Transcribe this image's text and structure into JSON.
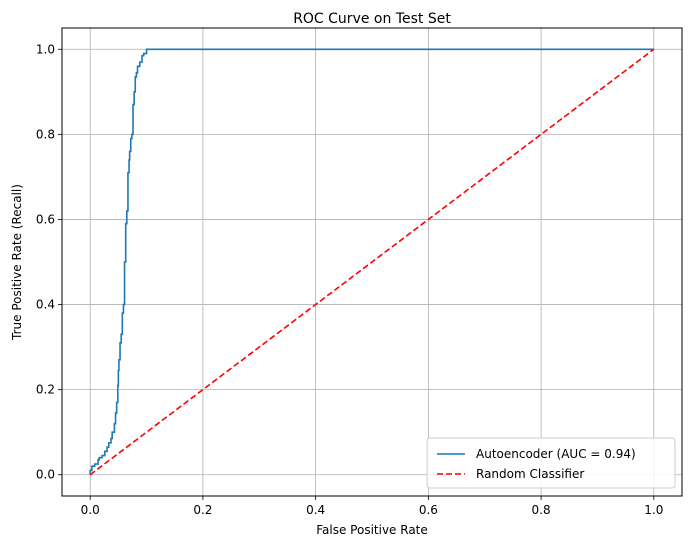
{
  "chart_data": {
    "type": "line",
    "title": "ROC Curve on Test Set",
    "xlabel": "False Positive Rate",
    "ylabel": "True Positive Rate (Recall)",
    "xlim": [
      -0.05,
      1.05
    ],
    "ylim": [
      -0.05,
      1.05
    ],
    "xticks": [
      0.0,
      0.2,
      0.4,
      0.6,
      0.8,
      1.0
    ],
    "yticks": [
      0.0,
      0.2,
      0.4,
      0.6,
      0.8,
      1.0
    ],
    "xtick_labels": [
      "0.0",
      "0.2",
      "0.4",
      "0.6",
      "0.8",
      "1.0"
    ],
    "ytick_labels": [
      "0.0",
      "0.2",
      "0.4",
      "0.6",
      "0.8",
      "1.0"
    ],
    "grid": true,
    "legend_position": "lower-right",
    "series": [
      {
        "name": "Autoencoder (AUC = 0.94)",
        "color": "#1f77b4",
        "style": "step",
        "x": [
          0.0,
          0.0,
          0.003,
          0.003,
          0.008,
          0.008,
          0.014,
          0.014,
          0.016,
          0.016,
          0.021,
          0.021,
          0.026,
          0.026,
          0.03,
          0.03,
          0.033,
          0.033,
          0.037,
          0.037,
          0.039,
          0.039,
          0.043,
          0.043,
          0.045,
          0.045,
          0.047,
          0.047,
          0.049,
          0.049,
          0.05,
          0.05,
          0.051,
          0.051,
          0.053,
          0.053,
          0.055,
          0.055,
          0.057,
          0.057,
          0.059,
          0.059,
          0.061,
          0.061,
          0.063,
          0.063,
          0.065,
          0.065,
          0.067,
          0.067,
          0.069,
          0.069,
          0.07,
          0.07,
          0.072,
          0.072,
          0.074,
          0.074,
          0.076,
          0.076,
          0.078,
          0.078,
          0.08,
          0.08,
          0.082,
          0.082,
          0.084,
          0.084,
          0.088,
          0.088,
          0.092,
          0.092,
          0.095,
          0.095,
          0.1,
          0.1,
          0.105,
          0.105,
          1.0
        ],
        "y": [
          0.0,
          0.01,
          0.01,
          0.02,
          0.02,
          0.025,
          0.025,
          0.035,
          0.035,
          0.04,
          0.04,
          0.045,
          0.045,
          0.055,
          0.055,
          0.065,
          0.065,
          0.075,
          0.075,
          0.085,
          0.085,
          0.1,
          0.1,
          0.12,
          0.12,
          0.145,
          0.145,
          0.17,
          0.17,
          0.21,
          0.21,
          0.245,
          0.245,
          0.27,
          0.27,
          0.31,
          0.31,
          0.33,
          0.33,
          0.38,
          0.38,
          0.4,
          0.4,
          0.5,
          0.5,
          0.59,
          0.59,
          0.62,
          0.62,
          0.71,
          0.71,
          0.74,
          0.74,
          0.76,
          0.76,
          0.79,
          0.79,
          0.8,
          0.8,
          0.87,
          0.87,
          0.9,
          0.9,
          0.935,
          0.935,
          0.945,
          0.945,
          0.96,
          0.96,
          0.97,
          0.97,
          0.985,
          0.985,
          0.99,
          0.99,
          1.0,
          1.0,
          1.0,
          1.0
        ]
      },
      {
        "name": "Random Classifier",
        "color": "#ff0000",
        "style": "dashed",
        "x": [
          0.0,
          1.0
        ],
        "y": [
          0.0,
          1.0
        ]
      }
    ]
  }
}
